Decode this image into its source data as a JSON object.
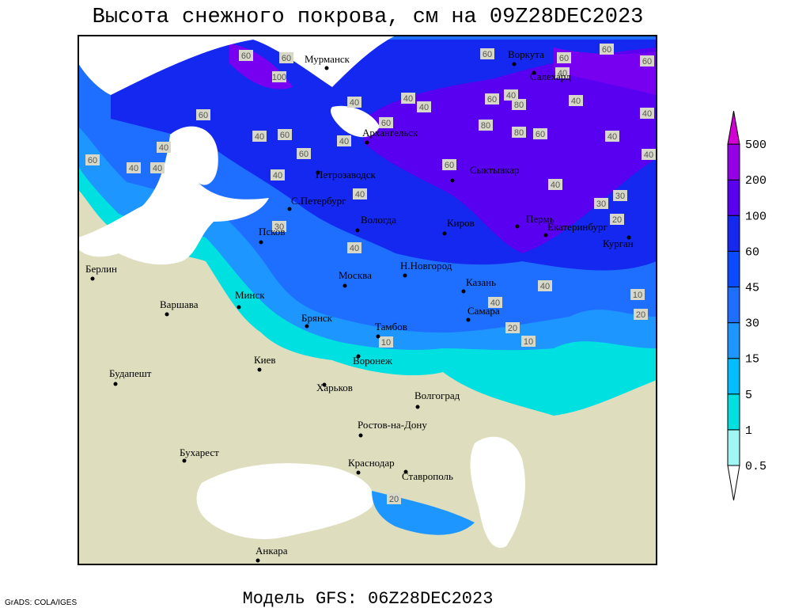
{
  "header": {
    "title": "Высота снежного покрова, см на 09Z28DEC2023"
  },
  "footer": {
    "model": "Модель GFS: 06Z28DEC2023",
    "credit": "GrADS: COLA/IGES"
  },
  "legend": {
    "levels": [
      0.5,
      1,
      5,
      15,
      30,
      45,
      60,
      100,
      200,
      500
    ],
    "colors": [
      "#ffffff",
      "#a0f5f5",
      "#00e0e0",
      "#00beff",
      "#1e96ff",
      "#1e6eff",
      "#0a4bff",
      "#1428f0",
      "#5a00f0",
      "#9600e6",
      "#d200d2"
    ]
  },
  "cities": [
    "Мурманск",
    "Воркута",
    "Салехард",
    "Архангельск",
    "Петрозаводск",
    "Сыктывкар",
    "С.Петербург",
    "Вологда",
    "Киров",
    "Пермь",
    "Екатеринбург",
    "Курган",
    "Псков",
    "Берлин",
    "Н.Новгород",
    "Москва",
    "Казань",
    "Минск",
    "Варшава",
    "Самара",
    "Брянск",
    "Тамбов",
    "Воронеж",
    "Киев",
    "Будапешт",
    "Харьков",
    "Волгоград",
    "Ростов-на-Дону",
    "Бухарест",
    "Краснодар",
    "Ставрополь",
    "Анкара"
  ],
  "contour_labels": [
    100,
    60,
    60,
    60,
    60,
    60,
    60,
    40,
    40,
    40,
    40,
    60,
    40,
    80,
    40,
    40,
    60,
    80,
    80,
    60,
    40,
    40,
    40,
    40,
    60,
    40,
    60,
    40,
    60,
    60,
    40,
    40,
    60,
    40,
    40,
    40,
    30,
    30,
    30,
    40,
    40,
    20,
    20,
    10,
    10,
    20,
    10,
    20
  ]
}
